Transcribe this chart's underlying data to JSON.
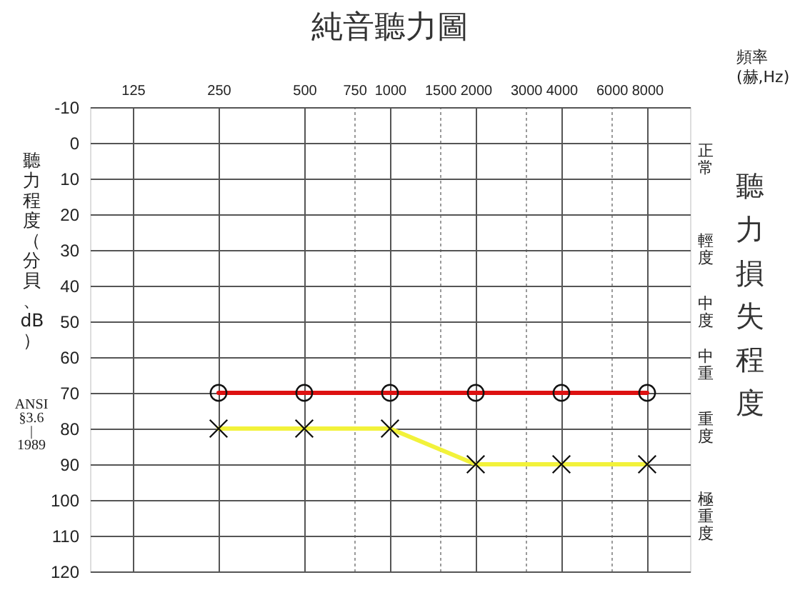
{
  "chart_data": {
    "type": "line",
    "title": "純音聽力圖",
    "xlabel": "頻率\n(赫,Hz)",
    "ylabel": "聽力程度（分貝、dB）",
    "y2label": "聽力損失程度",
    "annotations": [
      "ANSI §3.6 | 1989",
      "正常",
      "輕度",
      "中度",
      "中重",
      "重度",
      "極重度"
    ],
    "x": [
      250,
      500,
      1000,
      2000,
      4000,
      8000
    ],
    "series": [
      {
        "color": "#dd1111",
        "marker": "circle",
        "values": [
          70,
          70,
          70,
          70,
          70,
          70
        ]
      },
      {
        "color": "#f2f23a",
        "marker": "cross",
        "values": [
          80,
          80,
          80,
          90,
          90,
          90
        ]
      }
    ],
    "log": "x",
    "xlim": [
      88.4,
      11314
    ],
    "xticks": [
      125,
      250,
      500,
      750,
      1000,
      1500,
      2000,
      3000,
      4000,
      6000,
      8000
    ],
    "ylim": [
      120,
      -10
    ],
    "yticks": [
      -10,
      0,
      10,
      20,
      30,
      40,
      50,
      60,
      70,
      80,
      90,
      100,
      110,
      120
    ],
    "grid": true,
    "line_style": "solid"
  }
}
